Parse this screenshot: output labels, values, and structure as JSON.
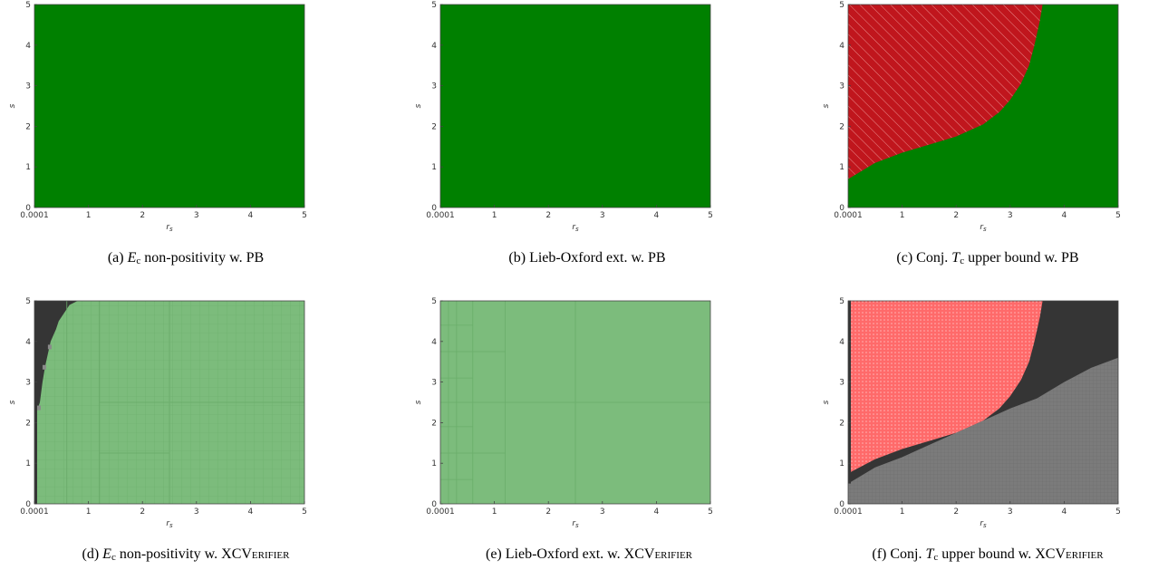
{
  "colors": {
    "pb_ok": "#008000",
    "pb_violation": "#c0161d",
    "xcv_verified": "#7cbc7c",
    "xcv_counterexample": "#ff6a6a",
    "xcv_unknown": "#7b7b7b",
    "xcv_dark": "#353535"
  },
  "captions": [
    {
      "label": "(a)",
      "sym": "E",
      "sub": "c",
      "rest": " non-positivity w. PB",
      "sc": ""
    },
    {
      "label": "(b)",
      "sym": "",
      "sub": "",
      "rest": "Lieb-Oxford ext. w. PB",
      "sc": ""
    },
    {
      "label": "(c)",
      "sym": "T",
      "sub": "c",
      "rest": " upper bound w. PB",
      "pre": "Conj. ",
      "sc": ""
    },
    {
      "label": "(d)",
      "sym": "E",
      "sub": "c",
      "rest": " non-positivity w. ",
      "sc": "XCVerifier"
    },
    {
      "label": "(e)",
      "sym": "",
      "sub": "",
      "rest": "Lieb-Oxford ext. w. ",
      "sc": "XCVerifier"
    },
    {
      "label": "(f)",
      "sym": "T",
      "sub": "c",
      "rest": " upper bound w. ",
      "pre": "Conj. ",
      "sc": "XCVerifier"
    }
  ],
  "chart_data": [
    {
      "id": "a",
      "type": "heatmap",
      "xlabel": "r_s",
      "ylabel": "s",
      "xlim": [
        0.0001,
        5
      ],
      "ylim": [
        0,
        5
      ],
      "xticks": [
        "0.0001",
        "1",
        "2",
        "3",
        "4",
        "5"
      ],
      "yticks": [
        "0",
        "1",
        "2",
        "3",
        "4",
        "5"
      ],
      "regions": [
        {
          "name": "satisfied",
          "color": "#008000",
          "area": "entire domain"
        }
      ]
    },
    {
      "id": "b",
      "type": "heatmap",
      "xlabel": "r_s",
      "ylabel": "s",
      "xlim": [
        0.0001,
        5
      ],
      "ylim": [
        0,
        5
      ],
      "xticks": [
        "0.0001",
        "1",
        "2",
        "3",
        "4",
        "5"
      ],
      "yticks": [
        "0",
        "1",
        "2",
        "3",
        "4",
        "5"
      ],
      "regions": [
        {
          "name": "satisfied",
          "color": "#008000",
          "area": "entire domain"
        }
      ]
    },
    {
      "id": "c",
      "type": "heatmap",
      "xlabel": "r_s",
      "ylabel": "s",
      "xlim": [
        0.0001,
        5
      ],
      "ylim": [
        0,
        5
      ],
      "xticks": [
        "0.0001",
        "1",
        "2",
        "3",
        "4",
        "5"
      ],
      "yticks": [
        "0",
        "1",
        "2",
        "3",
        "4",
        "5"
      ],
      "boundary": {
        "x": [
          0.0001,
          0.5,
          1.0,
          1.5,
          2.0,
          2.5,
          2.8,
          3.0,
          3.2,
          3.35,
          3.45,
          3.55,
          3.6
        ],
        "y": [
          0.7,
          1.1,
          1.35,
          1.55,
          1.75,
          2.05,
          2.35,
          2.65,
          3.05,
          3.5,
          4.0,
          4.6,
          5.0
        ]
      },
      "regions": [
        {
          "name": "violation",
          "color": "#c0161d",
          "area": "above boundary (hatched)"
        },
        {
          "name": "satisfied",
          "color": "#008000",
          "area": "below boundary"
        }
      ]
    },
    {
      "id": "d",
      "type": "heatmap",
      "xlabel": "r_s",
      "ylabel": "s",
      "xlim": [
        0.0001,
        5
      ],
      "ylim": [
        0,
        5
      ],
      "xticks": [
        "0.0001",
        "1",
        "2",
        "3",
        "4",
        "5"
      ],
      "yticks": [
        "0",
        "1",
        "2",
        "3",
        "4",
        "5"
      ],
      "boundary": {
        "x": [
          0.0001,
          0.05,
          0.05,
          0.1,
          0.15,
          0.2,
          0.25,
          0.3,
          0.4,
          0.45,
          0.55,
          0.65,
          0.8,
          5
        ],
        "y": [
          0,
          0,
          2.3,
          2.5,
          3.0,
          3.4,
          3.7,
          4.0,
          4.3,
          4.5,
          4.7,
          4.9,
          5.0,
          5.0
        ]
      },
      "regions": [
        {
          "name": "verified",
          "color": "#7cbc7c",
          "area": "right of boundary (box grid)"
        },
        {
          "name": "unverified",
          "color": "#353535",
          "area": "left of boundary"
        }
      ]
    },
    {
      "id": "e",
      "type": "heatmap",
      "xlabel": "r_s",
      "ylabel": "s",
      "xlim": [
        0.0001,
        5
      ],
      "ylim": [
        0,
        5
      ],
      "xticks": [
        "0.0001",
        "1",
        "2",
        "3",
        "4",
        "5"
      ],
      "yticks": [
        "0",
        "1",
        "2",
        "3",
        "4",
        "5"
      ],
      "regions": [
        {
          "name": "verified",
          "color": "#7cbc7c",
          "area": "entire domain (box grid)"
        }
      ]
    },
    {
      "id": "f",
      "type": "heatmap",
      "xlabel": "r_s",
      "ylabel": "s",
      "xlim": [
        0.0001,
        5
      ],
      "ylim": [
        0,
        5
      ],
      "xticks": [
        "0.0001",
        "1",
        "2",
        "3",
        "4",
        "5"
      ],
      "yticks": [
        "0",
        "1",
        "2",
        "3",
        "4",
        "5"
      ],
      "upper_boundary": {
        "x": [
          0.0001,
          0.5,
          1.0,
          1.5,
          2.0,
          2.5,
          2.8,
          3.0,
          3.2,
          3.35,
          3.45,
          3.55,
          3.6
        ],
        "y": [
          0.75,
          1.1,
          1.35,
          1.55,
          1.75,
          2.05,
          2.35,
          2.65,
          3.05,
          3.5,
          4.0,
          4.6,
          5.0
        ]
      },
      "lower_boundary": {
        "x": [
          0.0001,
          0.5,
          1.0,
          1.5,
          2.0,
          2.5,
          3.0,
          3.5,
          4.0,
          4.5,
          5.0
        ],
        "y": [
          0.5,
          0.9,
          1.15,
          1.45,
          1.75,
          2.05,
          2.35,
          2.6,
          3.0,
          3.35,
          3.6
        ]
      },
      "regions": [
        {
          "name": "counterexample",
          "color": "#ff6a6a",
          "area": "above upper boundary (dotted)"
        },
        {
          "name": "unknown",
          "color": "#353535",
          "area": "between boundaries"
        },
        {
          "name": "verified",
          "color": "#7b7b7b",
          "area": "below lower boundary (grid)"
        }
      ]
    }
  ]
}
